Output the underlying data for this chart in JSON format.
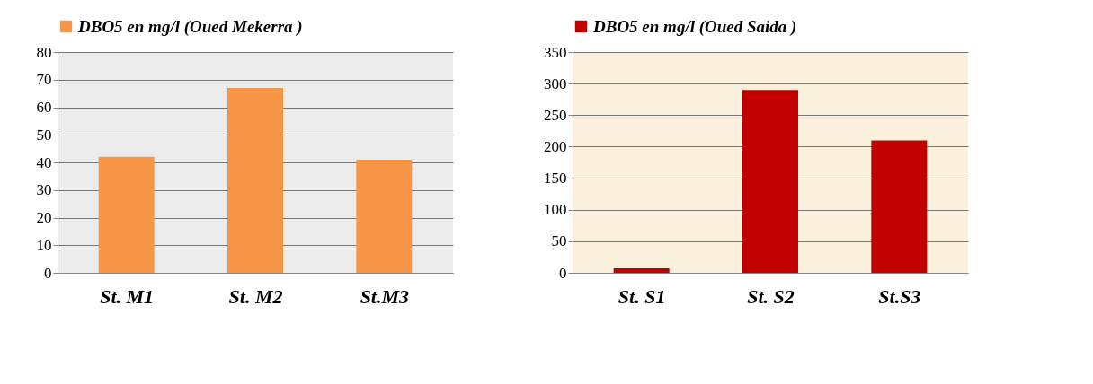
{
  "chart_data": [
    {
      "type": "bar",
      "categories": [
        "St. M1",
        "St. M2",
        "St.M3"
      ],
      "series": [
        {
          "name": "DBO5 en mg/l (Oued Mekerra )",
          "color": "#f79646",
          "values": [
            42,
            67,
            41
          ]
        }
      ],
      "ylim": [
        0,
        80
      ],
      "yticks": [
        0,
        10,
        20,
        30,
        40,
        50,
        60,
        70,
        80
      ],
      "grid": "y",
      "legend": "top"
    },
    {
      "type": "bar",
      "categories": [
        "St. S1",
        "St. S2",
        "St.S3"
      ],
      "series": [
        {
          "name": "DBO5 en mg/l (Oued Saida )",
          "color": "#c00000",
          "values": [
            7,
            290,
            210
          ]
        }
      ],
      "ylim": [
        0,
        350
      ],
      "yticks": [
        0,
        50,
        100,
        150,
        200,
        250,
        300,
        350
      ],
      "grid": "y",
      "legend": "top"
    }
  ]
}
